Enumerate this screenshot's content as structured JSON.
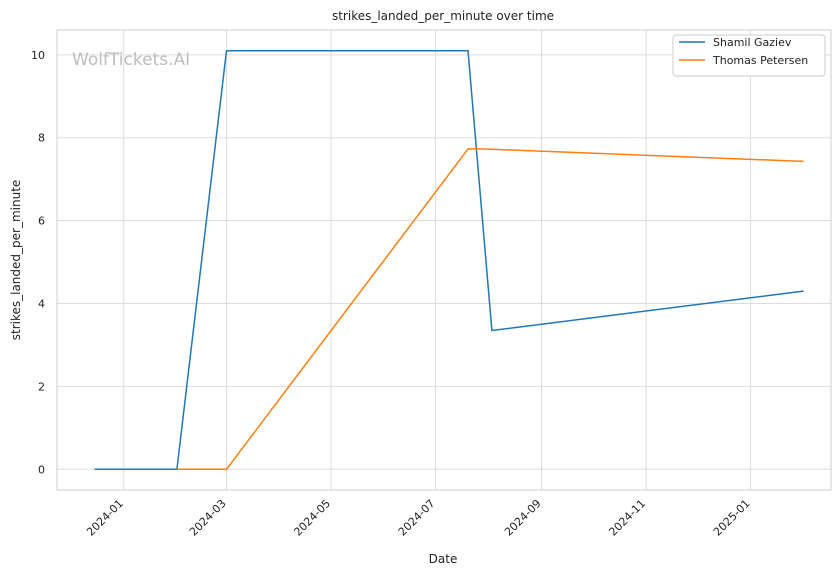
{
  "chart_data": {
    "type": "line",
    "title": "strikes_landed_per_minute over time",
    "xlabel": "Date",
    "ylabel": "strikes_landed_per_minute",
    "watermark": "WolfTickets.AI",
    "x_ticks": [
      "2024-01",
      "2024-03",
      "2024-05",
      "2024-07",
      "2024-09",
      "2024-11",
      "2025-01"
    ],
    "y_ticks": [
      0,
      2,
      4,
      6,
      8,
      10
    ],
    "xlim": [
      "2023-11-23",
      "2025-02-17"
    ],
    "ylim": [
      -0.5,
      10.6
    ],
    "grid": true,
    "legend_position": "top-right",
    "series": [
      {
        "name": "Shamil Gaziev",
        "color": "#1f77b4",
        "points": [
          {
            "x": "2023-12-15",
            "y": 0.0
          },
          {
            "x": "2024-02-01",
            "y": 0.0
          },
          {
            "x": "2024-03-01",
            "y": 10.1
          },
          {
            "x": "2024-07-20",
            "y": 10.1
          },
          {
            "x": "2024-08-03",
            "y": 3.35
          },
          {
            "x": "2025-02-01",
            "y": 4.3
          }
        ]
      },
      {
        "name": "Thomas Petersen",
        "color": "#ff7f0e",
        "points": [
          {
            "x": "2024-02-01",
            "y": 0.0
          },
          {
            "x": "2024-03-01",
            "y": 0.0
          },
          {
            "x": "2024-07-20",
            "y": 7.73
          },
          {
            "x": "2024-07-28",
            "y": 7.73
          },
          {
            "x": "2025-02-01",
            "y": 7.43
          }
        ]
      }
    ]
  }
}
